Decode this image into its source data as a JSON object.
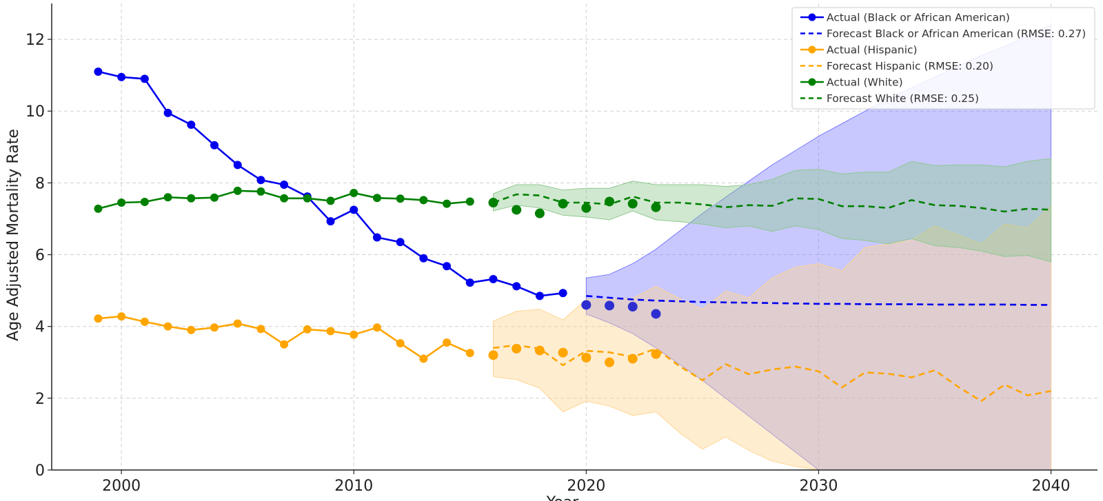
{
  "chart_data": {
    "type": "line",
    "title": "",
    "xlabel": "Year",
    "ylabel": "Age Adjusted Mortality Rate",
    "xlim": [
      1997,
      2042
    ],
    "ylim": [
      0,
      13
    ],
    "xticks": [
      2000,
      2010,
      2020,
      2030,
      2040
    ],
    "yticks": [
      0,
      2,
      4,
      6,
      8,
      10,
      12
    ],
    "grid": true,
    "legend_position": "top-right",
    "series": [
      {
        "name": "Actual (Black or African American)",
        "kind": "actual",
        "color": "#0000ee",
        "x": [
          1999,
          2000,
          2001,
          2002,
          2003,
          2004,
          2005,
          2006,
          2007,
          2008,
          2009,
          2010,
          2011,
          2012,
          2013,
          2014,
          2015,
          2016,
          2017,
          2018,
          2019
        ],
        "y": [
          11.1,
          10.95,
          10.9,
          9.95,
          9.62,
          9.05,
          8.5,
          8.08,
          7.95,
          7.62,
          6.93,
          7.25,
          6.48,
          6.35,
          5.9,
          5.68,
          5.22,
          5.32,
          5.12,
          4.85,
          4.93
        ]
      },
      {
        "name": "Forecast Black or African American (RMSE: 0.27)",
        "kind": "forecast",
        "color": "#0000ee",
        "band_color": "#7b7bff",
        "x": [
          2020,
          2021,
          2022,
          2023,
          2024,
          2025,
          2026,
          2027,
          2028,
          2029,
          2030,
          2031,
          2032,
          2033,
          2034,
          2035,
          2036,
          2037,
          2038,
          2039,
          2040
        ],
        "y": [
          4.85,
          4.8,
          4.75,
          4.72,
          4.7,
          4.68,
          4.67,
          4.66,
          4.65,
          4.64,
          4.63,
          4.63,
          4.62,
          4.62,
          4.62,
          4.61,
          4.61,
          4.61,
          4.61,
          4.6,
          4.6
        ],
        "lower": [
          4.35,
          4.1,
          3.8,
          3.4,
          2.95,
          2.5,
          2.0,
          1.5,
          1.0,
          0.5,
          0.0,
          0.0,
          0.0,
          0.0,
          0.0,
          0.0,
          0.0,
          0.0,
          0.0,
          0.0,
          0.0
        ],
        "upper": [
          5.35,
          5.45,
          5.75,
          6.15,
          6.65,
          7.15,
          7.6,
          8.05,
          8.5,
          8.9,
          9.3,
          9.65,
          10.0,
          10.35,
          10.65,
          10.95,
          11.25,
          11.55,
          11.8,
          12.1,
          12.4
        ]
      },
      {
        "name": "Actual (Hispanic)",
        "kind": "actual",
        "color": "#ffa500",
        "x": [
          1999,
          2000,
          2001,
          2002,
          2003,
          2004,
          2005,
          2006,
          2007,
          2008,
          2009,
          2010,
          2011,
          2012,
          2013,
          2014,
          2015
        ],
        "y": [
          4.22,
          4.28,
          4.13,
          4.0,
          3.9,
          3.97,
          4.08,
          3.93,
          3.5,
          3.92,
          3.87,
          3.77,
          3.97,
          3.53,
          3.1,
          3.55,
          3.26
        ]
      },
      {
        "name": "Forecast Hispanic (RMSE: 0.20)",
        "kind": "forecast",
        "color": "#ffa500",
        "band_color": "#ffd590",
        "x": [
          2016,
          2017,
          2018,
          2019,
          2020,
          2021,
          2022,
          2023,
          2024,
          2025,
          2026,
          2027,
          2028,
          2029,
          2030,
          2031,
          2032,
          2033,
          2034,
          2035,
          2036,
          2037,
          2038,
          2039,
          2040
        ],
        "y": [
          3.4,
          3.48,
          3.38,
          2.92,
          3.32,
          3.28,
          3.15,
          3.38,
          2.9,
          2.5,
          2.95,
          2.67,
          2.8,
          2.88,
          2.75,
          2.3,
          2.72,
          2.68,
          2.58,
          2.78,
          2.32,
          1.92,
          2.38,
          2.08,
          2.2
        ],
        "lower": [
          2.6,
          2.52,
          2.28,
          1.62,
          1.92,
          1.78,
          1.52,
          1.62,
          1.05,
          0.58,
          0.92,
          0.55,
          0.25,
          0.1,
          0.0,
          0.0,
          0.0,
          0.0,
          0.0,
          0.0,
          0.0,
          0.0,
          0.0,
          0.0,
          0.0
        ],
        "upper": [
          4.15,
          4.42,
          4.48,
          4.18,
          4.75,
          4.75,
          4.78,
          5.12,
          4.78,
          4.48,
          4.98,
          4.8,
          5.35,
          5.65,
          5.75,
          5.55,
          6.2,
          6.3,
          6.4,
          6.8,
          6.55,
          6.3,
          6.85,
          6.75,
          7.35
        ]
      },
      {
        "name": "Actual (White)",
        "kind": "actual",
        "color": "#008000",
        "x": [
          1999,
          2000,
          2001,
          2002,
          2003,
          2004,
          2005,
          2006,
          2007,
          2008,
          2009,
          2010,
          2011,
          2012,
          2013,
          2014,
          2015
        ],
        "y": [
          7.28,
          7.45,
          7.47,
          7.6,
          7.57,
          7.59,
          7.78,
          7.76,
          7.57,
          7.57,
          7.5,
          7.72,
          7.58,
          7.56,
          7.52,
          7.42,
          7.48
        ]
      },
      {
        "name": "Forecast White (RMSE: 0.25)",
        "kind": "forecast",
        "color": "#008000",
        "band_color": "#90c890",
        "x": [
          2016,
          2017,
          2018,
          2019,
          2020,
          2021,
          2022,
          2023,
          2024,
          2025,
          2026,
          2027,
          2028,
          2029,
          2030,
          2031,
          2032,
          2033,
          2034,
          2035,
          2036,
          2037,
          2038,
          2039,
          2040
        ],
        "y": [
          7.45,
          7.68,
          7.65,
          7.45,
          7.45,
          7.4,
          7.62,
          7.45,
          7.45,
          7.4,
          7.32,
          7.38,
          7.36,
          7.57,
          7.55,
          7.35,
          7.35,
          7.3,
          7.52,
          7.38,
          7.36,
          7.3,
          7.2,
          7.28,
          7.25
        ],
        "lower": [
          7.22,
          7.38,
          7.3,
          7.1,
          7.05,
          6.97,
          7.22,
          6.97,
          6.92,
          6.85,
          6.75,
          6.8,
          6.65,
          6.8,
          6.7,
          6.45,
          6.4,
          6.3,
          6.45,
          6.25,
          6.2,
          6.1,
          5.95,
          5.98,
          5.8
        ],
        "upper": [
          7.7,
          7.95,
          7.95,
          7.8,
          7.85,
          7.85,
          8.05,
          7.95,
          7.95,
          7.95,
          7.9,
          7.95,
          8.1,
          8.35,
          8.38,
          8.25,
          8.3,
          8.3,
          8.6,
          8.48,
          8.5,
          8.5,
          8.45,
          8.6,
          8.68
        ]
      },
      {
        "name": "",
        "kind": "observed",
        "color": "#2e2ed0",
        "x": [
          2020,
          2021,
          2022,
          2023
        ],
        "y": [
          4.6,
          4.58,
          4.55,
          4.35
        ]
      },
      {
        "name": "",
        "kind": "observed",
        "color": "#ffa500",
        "x": [
          2016,
          2017,
          2018,
          2019,
          2020,
          2021,
          2022,
          2023
        ],
        "y": [
          3.2,
          3.38,
          3.33,
          3.27,
          3.13,
          3.0,
          3.1,
          3.23
        ]
      },
      {
        "name": "",
        "kind": "observed",
        "color": "#008000",
        "x": [
          2016,
          2017,
          2018,
          2019,
          2020,
          2021,
          2022,
          2023
        ],
        "y": [
          7.45,
          7.25,
          7.15,
          7.42,
          7.3,
          7.48,
          7.42,
          7.32
        ]
      }
    ],
    "legend": [
      {
        "label": "Actual (Black or African American)",
        "color": "#0000ee",
        "style": "solid-marker"
      },
      {
        "label": "Forecast Black or African American (RMSE: 0.27)",
        "color": "#0000ee",
        "style": "dashed"
      },
      {
        "label": "Actual (Hispanic)",
        "color": "#ffa500",
        "style": "solid-marker"
      },
      {
        "label": "Forecast Hispanic (RMSE: 0.20)",
        "color": "#ffa500",
        "style": "dashed"
      },
      {
        "label": "Actual (White)",
        "color": "#008000",
        "style": "solid-marker"
      },
      {
        "label": "Forecast White (RMSE: 0.25)",
        "color": "#008000",
        "style": "dashed"
      }
    ]
  }
}
